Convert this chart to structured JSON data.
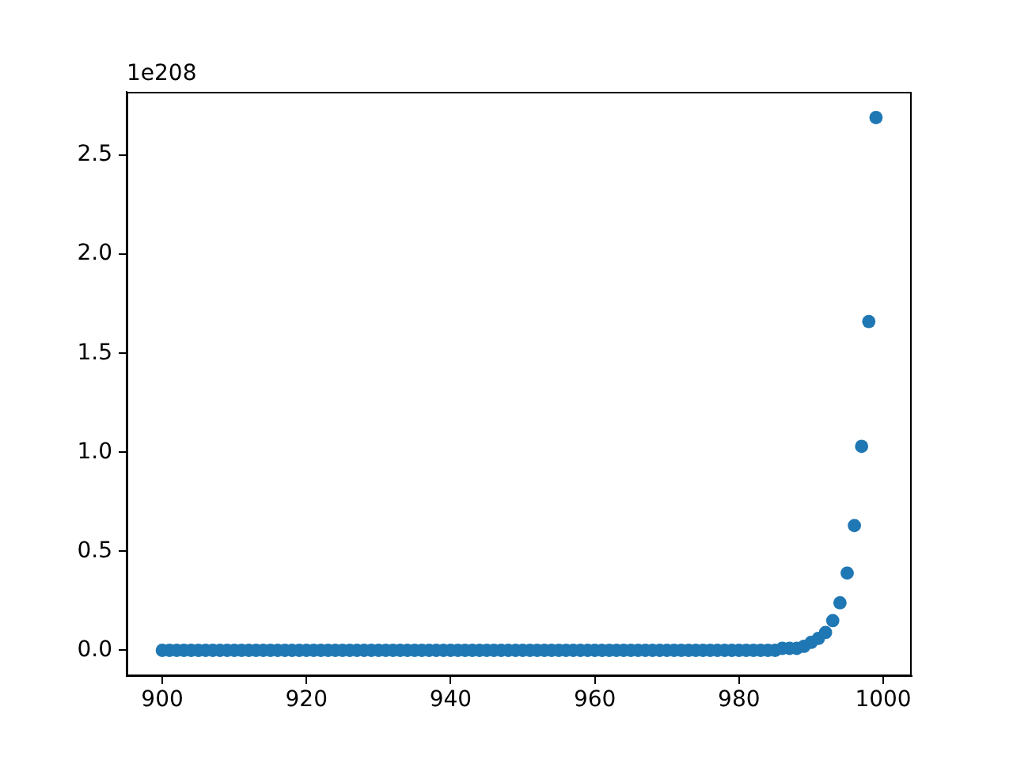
{
  "chart_data": {
    "type": "scatter",
    "annotations": [
      "1e208"
    ],
    "x": [
      900,
      901,
      902,
      903,
      904,
      905,
      906,
      907,
      908,
      909,
      910,
      911,
      912,
      913,
      914,
      915,
      916,
      917,
      918,
      919,
      920,
      921,
      922,
      923,
      924,
      925,
      926,
      927,
      928,
      929,
      930,
      931,
      932,
      933,
      934,
      935,
      936,
      937,
      938,
      939,
      940,
      941,
      942,
      943,
      944,
      945,
      946,
      947,
      948,
      949,
      950,
      951,
      952,
      953,
      954,
      955,
      956,
      957,
      958,
      959,
      960,
      961,
      962,
      963,
      964,
      965,
      966,
      967,
      968,
      969,
      970,
      971,
      972,
      973,
      974,
      975,
      976,
      977,
      978,
      979,
      980,
      981,
      982,
      983,
      984,
      985,
      986,
      987,
      988,
      989,
      990,
      991,
      992,
      993,
      994,
      995,
      996,
      997,
      998,
      999
    ],
    "values": [
      0,
      0,
      0,
      0,
      0,
      0,
      0,
      0,
      0,
      0,
      0,
      0,
      0,
      0,
      0,
      0,
      0,
      0,
      0,
      0,
      0,
      0,
      0,
      0,
      0,
      0,
      0,
      0,
      0,
      0,
      0,
      0,
      0,
      0,
      0,
      0,
      0,
      0,
      0,
      0,
      0,
      0,
      0,
      0,
      0,
      0,
      0,
      0,
      0,
      0,
      0,
      0,
      0,
      0,
      0,
      0,
      0,
      0,
      0,
      0,
      0,
      0,
      0,
      0,
      0,
      0,
      0,
      0,
      0,
      0,
      0,
      0,
      0,
      0,
      0,
      0,
      0,
      0,
      0,
      0,
      0,
      0,
      0,
      0,
      0,
      0,
      0.01,
      0.01,
      0.01,
      0.02,
      0.04,
      0.06,
      0.09,
      0.15,
      0.24,
      0.39,
      0.63,
      1.03,
      1.66,
      2.69
    ],
    "color": "#1f77b4",
    "marker": "circle",
    "xlim": [
      895.05,
      1003.95
    ],
    "xticks": [
      900,
      920,
      940,
      960,
      980,
      1000
    ],
    "ylim": [
      -0.13,
      2.82
    ],
    "yticks": [
      {
        "value": 0,
        "label": "0.0"
      },
      0.5,
      {
        "value": 1,
        "label": "1.0"
      },
      1.5,
      {
        "value": 2,
        "label": "2.0"
      },
      2.5
    ]
  }
}
